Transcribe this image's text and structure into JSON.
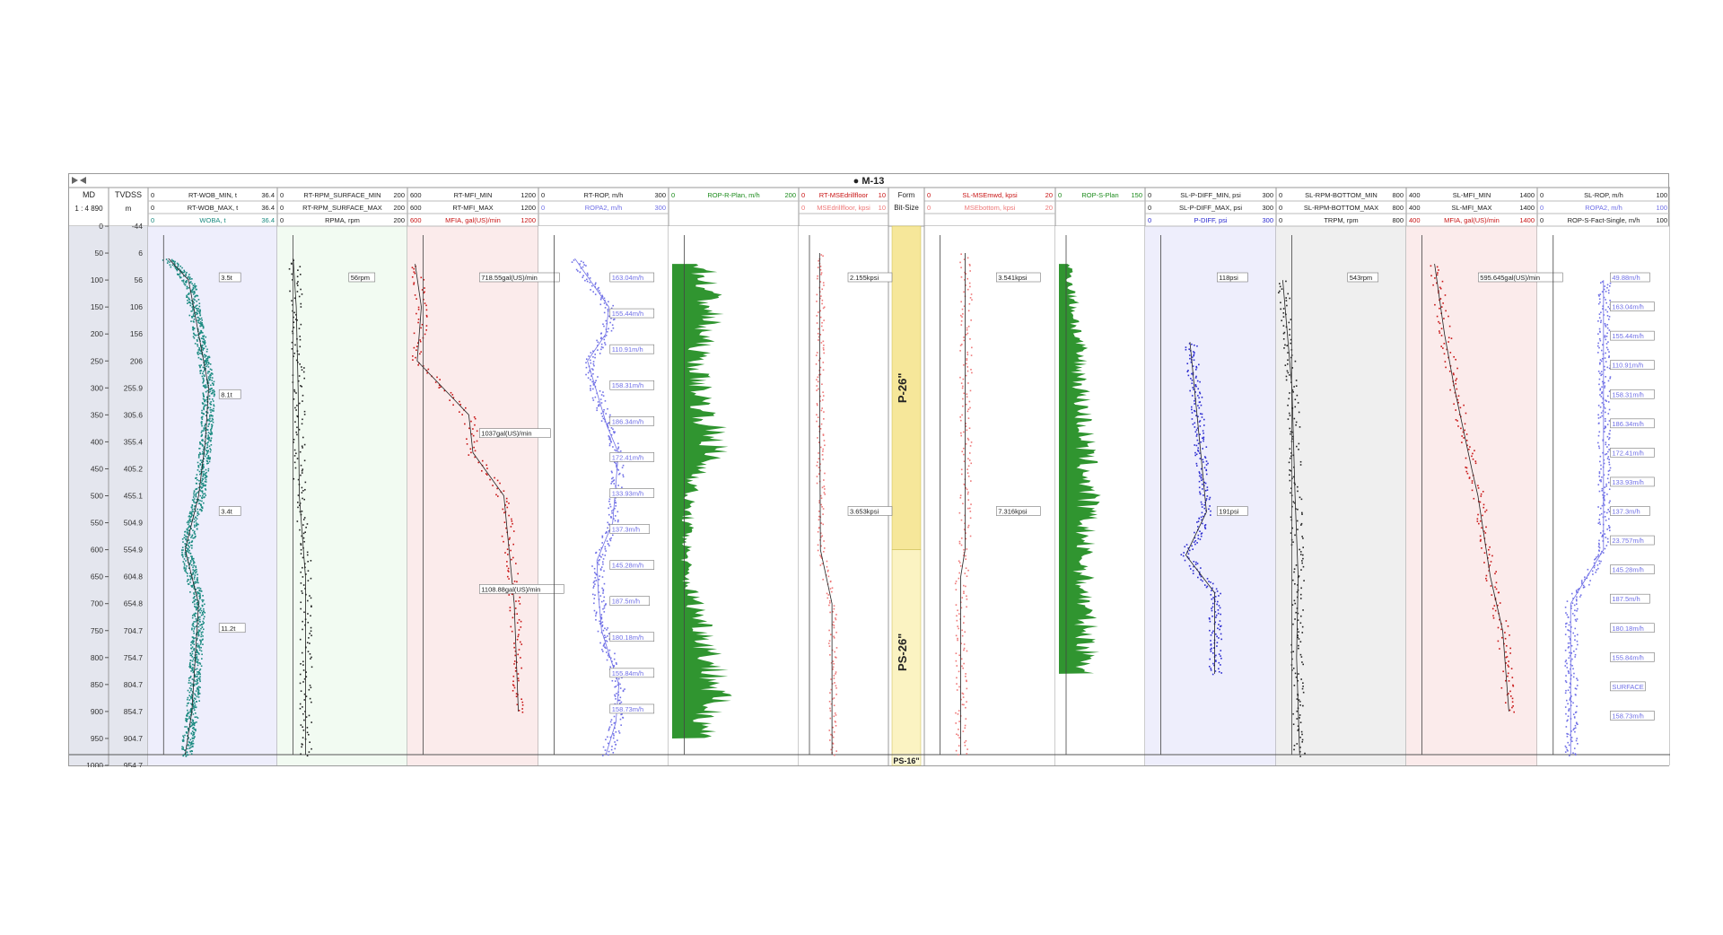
{
  "well": {
    "title": "M-13",
    "marker": "●"
  },
  "depth_tracks": {
    "md": {
      "label": "MD",
      "scale": "1 : 4 890",
      "ticks": [
        "0",
        "50",
        "100",
        "150",
        "200",
        "250",
        "300",
        "350",
        "400",
        "450",
        "500",
        "550",
        "600",
        "650",
        "700",
        "750",
        "800",
        "850",
        "900",
        "950",
        "1000"
      ]
    },
    "tvdss": {
      "label": "TVDSS",
      "unit": "m",
      "ticks": [
        "-44",
        "6",
        "56",
        "106",
        "156",
        "206",
        "255.9",
        "305.6",
        "355.4",
        "405.2",
        "455.1",
        "504.9",
        "554.9",
        "604.8",
        "654.8",
        "704.7",
        "754.7",
        "804.7",
        "854.7",
        "904.7",
        "954.7"
      ]
    }
  },
  "colors": {
    "teal": "#1a8a80",
    "black": "#222222",
    "red": "#c81414",
    "blue": "#6f6fe6",
    "green": "#1a8a1a",
    "pink": "#ee7777",
    "navy": "#2a2ad0",
    "purple_bg": "#eeeefc",
    "green_bg": "#f2fbf2",
    "red_bg": "#fbebeb",
    "gray_bg": "#efefef"
  },
  "chart_data": {
    "type": "line",
    "depth_axis": {
      "name": "MD",
      "range": [
        0,
        1000
      ],
      "tick_step": 50
    },
    "formation": {
      "header": [
        "Form",
        "Bit-Size"
      ],
      "zones": [
        {
          "name": "P-26\"",
          "top": 0,
          "base": 600
        },
        {
          "name": "PS-26\"",
          "top": 600,
          "base": 980
        },
        {
          "name": "PS-16\"",
          "top": 980,
          "base": 1000
        }
      ]
    },
    "tracks": [
      {
        "headers": [
          {
            "min": "0",
            "name": "RT-WOB_MIN, t",
            "max": "36.4",
            "color": "#222"
          },
          {
            "min": "0",
            "name": "RT-WOB_MAX, t",
            "max": "36.4",
            "color": "#222"
          },
          {
            "min": "0",
            "name": "WOBA, t",
            "max": "36.4",
            "color": "#1a8a80"
          }
        ],
        "series": [
          {
            "name": "WOBA, t",
            "unit": "t",
            "values": [
              [
                60,
                5
              ],
              [
                100,
                11
              ],
              [
                200,
                14
              ],
              [
                300,
                17
              ],
              [
                400,
                16
              ],
              [
                500,
                14
              ],
              [
                600,
                10
              ],
              [
                700,
                14
              ],
              [
                800,
                13
              ],
              [
                900,
                12
              ],
              [
                980,
                10
              ]
            ]
          }
        ],
        "labels": [
          "3.5t",
          "8.1t",
          "3.4t",
          "11.2t"
        ]
      },
      {
        "headers": [
          {
            "min": "0",
            "name": "RT-RPM_SURFACE_MIN",
            "max": "200",
            "color": "#222"
          },
          {
            "min": "0",
            "name": "RT-RPM_SURFACE_MAX",
            "max": "200",
            "color": "#222"
          },
          {
            "min": "0",
            "name": "RPMA, rpm",
            "max": "200",
            "color": "#222"
          }
        ],
        "series": [
          {
            "name": "RPMA, rpm",
            "unit": "rpm",
            "values": [
              [
                60,
                20
              ],
              [
                150,
                25
              ],
              [
                300,
                28
              ],
              [
                500,
                30
              ],
              [
                650,
                40
              ],
              [
                800,
                40
              ],
              [
                980,
                40
              ]
            ]
          }
        ],
        "labels": [
          "56rpm"
        ]
      },
      {
        "headers": [
          {
            "min": "600",
            "name": "RT-MFI_MIN",
            "max": "1200",
            "color": "#222"
          },
          {
            "min": "600",
            "name": "RT-MFI_MAX",
            "max": "1200",
            "color": "#222"
          },
          {
            "min": "600",
            "name": "MFIA, gal(US)/min",
            "max": "1200",
            "color": "#c81414"
          }
        ],
        "series": [
          {
            "name": "MFIA, gal(US)/min",
            "unit": "gal(US)/min",
            "values": [
              [
                70,
                620
              ],
              [
                150,
                650
              ],
              [
                250,
                630
              ],
              [
                350,
                880
              ],
              [
                420,
                900
              ],
              [
                500,
                1050
              ],
              [
                700,
                1100
              ],
              [
                900,
                1120
              ]
            ]
          }
        ],
        "labels": [
          "718.55gal(US)/min",
          "1037gal(US)/min",
          "1108.88gal(US)/min"
        ]
      },
      {
        "headers": [
          {
            "min": "0",
            "name": "RT-ROP, m/h",
            "max": "300",
            "color": "#222"
          },
          {
            "min": "0",
            "name": "ROPA2, m/h",
            "max": "300",
            "color": "#6f6fe6"
          }
        ],
        "series": [
          {
            "name": "RT-ROP, m/h",
            "unit": "m/h",
            "values": [
              [
                60,
                80
              ],
              [
                150,
                163.04
              ],
              [
                200,
                155.44
              ],
              [
                250,
                110.91
              ],
              [
                370,
                158.31
              ],
              [
                420,
                186.34
              ],
              [
                550,
                172.41
              ],
              [
                620,
                133.93
              ],
              [
                680,
                137.3
              ],
              [
                750,
                145.28
              ],
              [
                850,
                187.5
              ],
              [
                920,
                180.18
              ],
              [
                980,
                155.84
              ]
            ]
          }
        ],
        "labels": [
          "163.04m/h",
          "155.44m/h",
          "110.91m/h",
          "158.31m/h",
          "186.34m/h",
          "172.41m/h",
          "133.93m/h",
          "137.3m/h",
          "145.28m/h",
          "187.5m/h",
          "180.18m/h",
          "155.84m/h",
          "158.73m/h"
        ]
      },
      {
        "headers": [
          {
            "min": "0",
            "name": "ROP-R-Plan, m/h",
            "max": "200",
            "color": "#1a8a1a"
          }
        ],
        "series": [
          {
            "name": "ROP-R-Plan, m/h",
            "unit": "m/h",
            "values": [
              [
                70,
                55
              ],
              [
                150,
                70
              ],
              [
                250,
                45
              ],
              [
                350,
                60
              ],
              [
                400,
                80
              ],
              [
                500,
                30
              ],
              [
                650,
                25
              ],
              [
                750,
                60
              ],
              [
                850,
                80
              ],
              [
                950,
                60
              ]
            ]
          }
        ],
        "labels": []
      },
      {
        "headers": [
          {
            "min": "0",
            "name": "RT-MSEdrillfloor",
            "max": "10",
            "color": "#c81414"
          },
          {
            "min": "0",
            "name": "MSEdrillfloor, kpsi",
            "max": "10",
            "color": "#ee7777"
          }
        ],
        "series": [
          {
            "name": "RT-MSEdrillfloor",
            "unit": "kpsi",
            "values": [
              [
                50,
                2.1
              ],
              [
                300,
                2.1
              ],
              [
                600,
                2.2
              ],
              [
                700,
                3.6
              ],
              [
                900,
                3.6
              ],
              [
                980,
                3.6
              ]
            ]
          }
        ],
        "labels": [
          "2.155kpsi",
          "3.653kpsi"
        ]
      },
      {
        "headers": [
          {
            "min": "0",
            "name": "SL-MSEmwd, kpsi",
            "max": "20",
            "color": "#c81414"
          },
          {
            "min": "0",
            "name": "MSEbottom, kpsi",
            "max": "20",
            "color": "#ee7777"
          }
        ],
        "series": [
          {
            "name": "SL-MSEmwd, kpsi",
            "unit": "kpsi",
            "values": [
              [
                50,
                6
              ],
              [
                600,
                6
              ],
              [
                650,
                5.3
              ],
              [
                900,
                5.3
              ],
              [
                980,
                5.3
              ]
            ]
          }
        ],
        "labels": [
          "3.541kpsi",
          "7.316kpsi"
        ]
      },
      {
        "headers": [
          {
            "min": "0",
            "name": "ROP-S-Plan",
            "max": "150",
            "color": "#1a8a1a"
          }
        ],
        "series": [
          {
            "name": "ROP-S-Plan",
            "unit": "m/h",
            "values": [
              [
                70,
                20
              ],
              [
                220,
                40
              ],
              [
                500,
                60
              ],
              [
                600,
                50
              ],
              [
                650,
                50
              ],
              [
                830,
                60
              ]
            ]
          }
        ],
        "labels": []
      },
      {
        "headers": [
          {
            "min": "0",
            "name": "SL-P-DIFF_MIN, psi",
            "max": "300",
            "color": "#222"
          },
          {
            "min": "0",
            "name": "SL-P-DIFF_MAX, psi",
            "max": "300",
            "color": "#222"
          },
          {
            "min": "0",
            "name": "P-DIFF, psi",
            "max": "300",
            "color": "#2a2ad0"
          }
        ],
        "series": [
          {
            "name": "P-DIFF, psi",
            "unit": "psi",
            "values": [
              [
                215,
                100
              ],
              [
                530,
                140
              ],
              [
                610,
                90
              ],
              [
                680,
                160
              ],
              [
                830,
                160
              ]
            ]
          }
        ],
        "labels": [
          "118psi",
          "191psi"
        ]
      },
      {
        "headers": [
          {
            "min": "0",
            "name": "SL-RPM-BOTTOM_MIN",
            "max": "800",
            "color": "#222"
          },
          {
            "min": "0",
            "name": "SL-RPM-BOTTOM_MAX",
            "max": "800",
            "color": "#222"
          },
          {
            "min": "0",
            "name": "TRPM, rpm",
            "max": "800",
            "color": "#222"
          }
        ],
        "series": [
          {
            "name": "TRPM, rpm",
            "unit": "rpm",
            "values": [
              [
                100,
                20
              ],
              [
                300,
                80
              ],
              [
                500,
                100
              ],
              [
                650,
                120
              ],
              [
                800,
                110
              ],
              [
                980,
                130
              ]
            ]
          }
        ],
        "labels": [
          "543rpm"
        ]
      },
      {
        "headers": [
          {
            "min": "400",
            "name": "SL-MFI_MIN",
            "max": "1400",
            "color": "#222"
          },
          {
            "min": "400",
            "name": "SL-MFI_MAX",
            "max": "1400",
            "color": "#222"
          },
          {
            "min": "400",
            "name": "MFIA, gal(US)/min",
            "max": "1400",
            "color": "#c81414"
          }
        ],
        "series": [
          {
            "name": "MFIA, gal(US)/min",
            "unit": "gal(US)/min",
            "values": [
              [
                70,
                600
              ],
              [
                200,
                680
              ],
              [
                300,
                760
              ],
              [
                450,
                900
              ],
              [
                500,
                950
              ],
              [
                650,
                1050
              ],
              [
                750,
                1150
              ],
              [
                900,
                1200
              ]
            ]
          }
        ],
        "labels": [
          "595.645gal(US)/min"
        ]
      },
      {
        "headers": [
          {
            "min": "0",
            "name": "SL-ROP, m/h",
            "max": "100",
            "color": "#222"
          },
          {
            "min": "0",
            "name": "ROPA2, m/h",
            "max": "100",
            "color": "#6f6fe6"
          },
          {
            "min": "0",
            "name": "ROP-S-Fact-Single, m/h",
            "max": "100",
            "color": "#222"
          }
        ],
        "series": [
          {
            "name": "ROP-S-Fact-Single, m/h",
            "unit": "m/h",
            "values": [
              [
                100,
                49.88
              ],
              [
                600,
                49.88
              ],
              [
                700,
                23.757
              ],
              [
                980,
                23.757
              ]
            ]
          }
        ],
        "labels": [
          "49.88m/h",
          "163.04m/h",
          "155.44m/h",
          "110.91m/h",
          "158.31m/h",
          "186.34m/h",
          "172.41m/h",
          "133.93m/h",
          "137.3m/h",
          "23.757m/h",
          "145.28m/h",
          "187.5m/h",
          "180.18m/h",
          "155.84m/h",
          "SURFACE",
          "158.73m/h"
        ]
      }
    ]
  }
}
